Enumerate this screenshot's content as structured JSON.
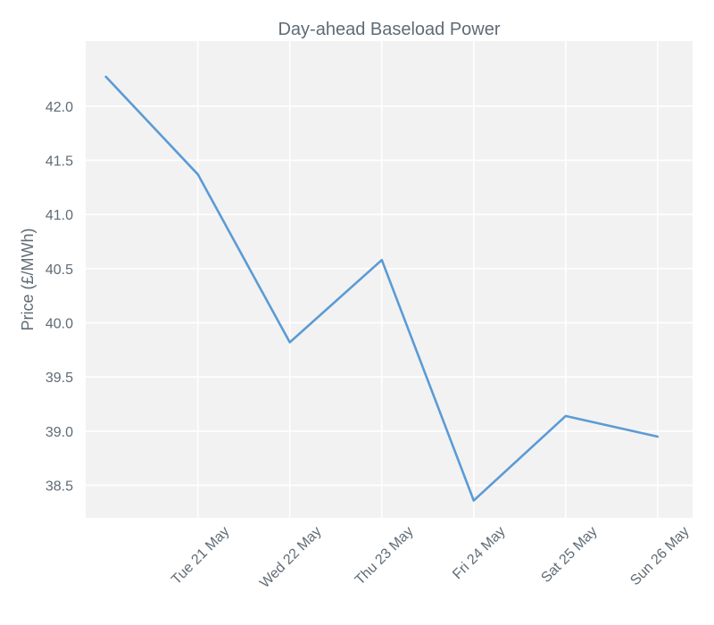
{
  "chart_data": {
    "type": "line",
    "title": "Day-ahead Baseload Power",
    "xlabel": "",
    "ylabel": "Price (£/MWh)",
    "x": [
      "2019-05-20",
      "2019-05-21",
      "2019-05-22",
      "2019-05-23",
      "2019-05-24",
      "2019-05-25",
      "2019-05-26"
    ],
    "series": [
      {
        "values": [
          42.27,
          41.37,
          39.82,
          40.58,
          38.36,
          39.14,
          38.95
        ]
      }
    ],
    "xticks": [
      "Tue 21 May",
      "Wed 22 May",
      "Thu 23 May",
      "Fri 24 May",
      "Sat 25 May",
      "Sun 26 May"
    ],
    "yticks": [
      "38.5",
      "39.0",
      "39.5",
      "40.0",
      "40.5",
      "41.0",
      "41.5",
      "42.0"
    ],
    "ylim": [
      38.2,
      42.6
    ],
    "grid": true,
    "colors": {
      "line": "#5b9bd5",
      "plot_background": "#f2f2f2",
      "grid": "#ffffff",
      "text": "#5f6b75"
    }
  }
}
